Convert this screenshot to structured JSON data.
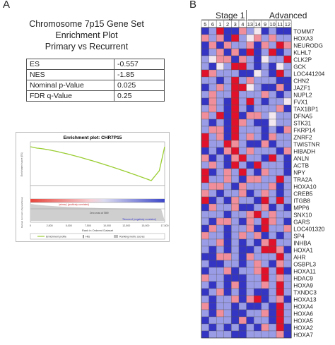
{
  "panel_a": {
    "letter": "A",
    "title_lines": [
      "Chromosome 7p15 Gene Set",
      "Enrichment Plot",
      "Primary vs Recurrent"
    ],
    "stats": [
      {
        "label": "ES",
        "value": "-0.557"
      },
      {
        "label": "NES",
        "value": "-1.85"
      },
      {
        "label": "Nominal p-Value",
        "value": "0.025"
      },
      {
        "label": "FDR q-Value",
        "value": "0.25"
      }
    ],
    "gsea_plot": {
      "title": "Enrichment plot: CHR7P15",
      "ylabel_top": "Enrichment score (ES)",
      "ylabel_bottom": "Ranked list metric (Signal2Noise)",
      "xlabel": "Rank in Ordered Dataset",
      "x_ticks": [
        "0",
        "2,500",
        "5,000",
        "7,500",
        "10,000",
        "12,500",
        "15,000",
        "17,500"
      ],
      "annotation_pos": "'primary' (positively correlated)",
      "annotation_neg": "'Recurrent' (negatively correlated)",
      "zero_cross": "Zero cross at 7869",
      "legend": [
        "Enrichment profile",
        "Hits",
        "Ranking metric scores"
      ],
      "colors": {
        "profile": "#9acd32",
        "hits": "#000000"
      }
    }
  },
  "panel_b": {
    "letter": "B",
    "groups": [
      {
        "label": "Stage 1"
      },
      {
        "label": "Advanced"
      }
    ],
    "columns": [
      "5",
      "6",
      "1",
      "2",
      "3",
      "4",
      "13",
      "14",
      "9",
      "10",
      "11",
      "12"
    ],
    "genes": [
      "TOMM7",
      "HOXA3",
      "NEURODG",
      "KLHL7",
      "CLK2P",
      "GCK",
      "LOC441204",
      "CHN2",
      "JAZF1",
      "NUPL2",
      "FVX1",
      "TAX1BP1",
      "DFNA5",
      "STK31",
      "FKRP14",
      "ZNRF2",
      "TWISTNR",
      "HIBADH",
      "ANLN",
      "ACTB",
      "NPY",
      "TRA2A",
      "HOXA10",
      "CREB5",
      "ITGB8",
      "MPP6",
      "SNX10",
      "GARS",
      "LOC401320",
      "SP4",
      "INHBA",
      "HOXA1",
      "AHR",
      "OSBPL3",
      "HOXA11",
      "HDAC9",
      "HOXA9",
      "TXNDC3",
      "HOXA13",
      "HOXA4",
      "HOXA6",
      "HOXA5",
      "HOXA2",
      "HOXA7"
    ],
    "colors": {
      "low": "#3a3fc8",
      "mid": "#f2e6ee",
      "high": "#e3102b"
    },
    "matrix": [
      [
        -2,
        -1,
        2,
        -2,
        -2,
        1,
        -1,
        0,
        -2,
        -1,
        -2,
        -2
      ],
      [
        1,
        -1,
        1,
        -2,
        2,
        -1,
        0,
        1,
        -1,
        1,
        -1,
        -1
      ],
      [
        -2,
        1,
        -2,
        1,
        -1,
        -1,
        1,
        -2,
        1,
        -1,
        2,
        1
      ],
      [
        -2,
        -1,
        1,
        -2,
        1,
        -2,
        2,
        -2,
        -1,
        2,
        -2,
        -1
      ],
      [
        -1,
        0,
        1,
        1,
        -2,
        1,
        -1,
        -2,
        0,
        -1,
        -1,
        2
      ],
      [
        -1,
        -2,
        0,
        -1,
        2,
        2,
        -1,
        -2,
        -1,
        -2,
        0,
        -1
      ],
      [
        2,
        1,
        -1,
        -1,
        -1,
        -2,
        -2,
        0,
        -1,
        -2,
        2,
        -1
      ],
      [
        -1,
        -1,
        -2,
        -1,
        2,
        -1,
        1,
        -1,
        -1,
        -1,
        -2,
        -2
      ],
      [
        -2,
        -1,
        1,
        -1,
        2,
        2,
        0,
        -1,
        -2,
        -2,
        1,
        -2
      ],
      [
        -1,
        1,
        -1,
        -1,
        2,
        -1,
        -1,
        -1,
        1,
        -1,
        -2,
        -1
      ],
      [
        -2,
        1,
        -1,
        -2,
        2,
        -1,
        2,
        -1,
        -2,
        -1,
        -1,
        0
      ],
      [
        -1,
        1,
        -1,
        -2,
        2,
        -1,
        -2,
        -1,
        -1,
        -1,
        1,
        -2
      ],
      [
        1,
        -1,
        2,
        -2,
        2,
        -2,
        1,
        1,
        -1,
        0,
        -1,
        -1
      ],
      [
        -1,
        -2,
        -1,
        -2,
        2,
        1,
        -1,
        -2,
        -2,
        0,
        -1,
        -1
      ],
      [
        -1,
        1,
        1,
        -2,
        2,
        -1,
        -1,
        -1,
        -2,
        -1,
        -2,
        1
      ],
      [
        2,
        -1,
        1,
        -2,
        2,
        -1,
        1,
        -1,
        -2,
        1,
        -1,
        -1
      ],
      [
        2,
        -1,
        -1,
        2,
        1,
        -1,
        -2,
        -2,
        1,
        -2,
        -1,
        -1
      ],
      [
        -2,
        -1,
        -2,
        1,
        2,
        -1,
        1,
        -1,
        -1,
        -1,
        -2,
        1
      ],
      [
        1,
        -2,
        -1,
        -2,
        1,
        2,
        -1,
        -1,
        -2,
        2,
        -1,
        -2
      ],
      [
        -1,
        1,
        -1,
        -2,
        2,
        -1,
        -2,
        2,
        -1,
        -1,
        -1,
        -2
      ],
      [
        2,
        -2,
        -1,
        1,
        -1,
        2,
        -1,
        -2,
        1,
        -1,
        -1,
        -2
      ],
      [
        2,
        -1,
        -1,
        1,
        -1,
        -2,
        1,
        1,
        -1,
        -1,
        2,
        -1
      ],
      [
        -1,
        1,
        1,
        -1,
        -2,
        1,
        -1,
        -1,
        -1,
        1,
        -2,
        -1
      ],
      [
        1,
        -1,
        -2,
        -1,
        -1,
        1,
        -2,
        -1,
        1,
        -1,
        -2,
        -1
      ],
      [
        2,
        -2,
        -1,
        -2,
        1,
        -1,
        -1,
        -2,
        2,
        -1,
        2,
        -1
      ],
      [
        -2,
        1,
        -1,
        -1,
        1,
        -2,
        -2,
        -1,
        1,
        -2,
        -1,
        -2
      ],
      [
        -1,
        -1,
        -1,
        -2,
        -1,
        -1,
        1,
        2,
        -1,
        1,
        -1,
        -1
      ],
      [
        -1,
        -2,
        1,
        1,
        -1,
        -2,
        1,
        -1,
        2,
        1,
        -1,
        -2
      ],
      [
        -2,
        1,
        -1,
        -2,
        -1,
        -1,
        1,
        -2,
        2,
        -1,
        -1,
        1
      ],
      [
        1,
        -1,
        -1,
        -2,
        -1,
        1,
        -1,
        1,
        -2,
        -1,
        -2,
        -1
      ],
      [
        -1,
        -1,
        1,
        -2,
        -1,
        -2,
        -1,
        -2,
        1,
        2,
        -1,
        -1
      ],
      [
        -1,
        -2,
        -1,
        -2,
        -1,
        -2,
        -2,
        -1,
        2,
        2,
        1,
        -2
      ],
      [
        -2,
        -2,
        1,
        1,
        -1,
        -2,
        1,
        -1,
        -1,
        -1,
        2,
        -1
      ],
      [
        -1,
        -2,
        -2,
        -1,
        -1,
        -2,
        -1,
        1,
        -1,
        -2,
        1,
        -1
      ],
      [
        -2,
        -1,
        -1,
        1,
        -2,
        -1,
        -1,
        1,
        2,
        -1,
        2,
        -2
      ],
      [
        1,
        -1,
        -1,
        -2,
        -2,
        -2,
        -1,
        -1,
        2,
        -1,
        1,
        -1
      ],
      [
        -1,
        -2,
        -1,
        -2,
        1,
        -2,
        -1,
        -1,
        1,
        -1,
        2,
        -1
      ],
      [
        -2,
        -1,
        1,
        -2,
        -1,
        -2,
        -1,
        -2,
        -2,
        -1,
        2,
        -1
      ],
      [
        -1,
        -2,
        -1,
        -1,
        1,
        -2,
        1,
        2,
        -2,
        -1,
        1,
        -2
      ],
      [
        1,
        -2,
        -1,
        -1,
        -2,
        -1,
        -2,
        -2,
        -1,
        -2,
        2,
        -1
      ],
      [
        -1,
        -2,
        1,
        -1,
        -2,
        -2,
        -1,
        -1,
        1,
        -2,
        2,
        -1
      ],
      [
        -2,
        -1,
        -1,
        -1,
        -2,
        1,
        -2,
        -1,
        -1,
        -2,
        2,
        -1
      ],
      [
        -1,
        -2,
        -1,
        -2,
        -1,
        -2,
        -1,
        -2,
        1,
        -1,
        2,
        -2
      ],
      [
        -2,
        -1,
        -1,
        -1,
        -2,
        -2,
        -1,
        -1,
        -1,
        -1,
        1,
        -2
      ]
    ]
  }
}
